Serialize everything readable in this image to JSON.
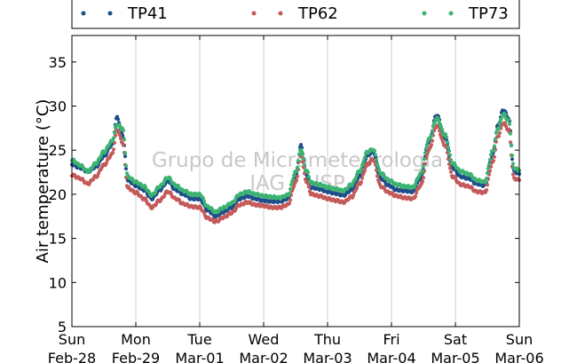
{
  "chart_data": {
    "type": "scatter",
    "ylabel": "Air temperature (°C)",
    "xlabel": "",
    "ylim": [
      5,
      38
    ],
    "yticks": [
      5,
      10,
      15,
      20,
      25,
      30,
      35
    ],
    "xlim": [
      "2016-02-28",
      "2016-03-06"
    ],
    "xticks": [
      {
        "date": "2016-02-28",
        "line1": "Sun",
        "line2": "Feb-28"
      },
      {
        "date": "2016-02-29",
        "line1": "Mon",
        "line2": "Feb-29"
      },
      {
        "date": "2016-03-01",
        "line1": "Tue",
        "line2": "Mar-01"
      },
      {
        "date": "2016-03-02",
        "line1": "Wed",
        "line2": "Mar-02"
      },
      {
        "date": "2016-03-03",
        "line1": "Thu",
        "line2": "Mar-03"
      },
      {
        "date": "2016-03-04",
        "line1": "Fri",
        "line2": "Mar-04"
      },
      {
        "date": "2016-03-05",
        "line1": "Sat",
        "line2": "Mar-05"
      },
      {
        "date": "2016-03-06",
        "line1": "Sun",
        "line2": "Mar-06"
      }
    ],
    "grid": "vertical",
    "legend_position": "top",
    "watermark": [
      "Grupo de Micrometeorologia",
      "IAG / USP"
    ],
    "x": [
      "2016-02-28T00:00",
      "2016-02-28T03:00",
      "2016-02-28T06:00",
      "2016-02-28T09:00",
      "2016-02-28T12:00",
      "2016-02-28T15:00",
      "2016-02-28T17:00",
      "2016-02-28T19:00",
      "2016-02-28T21:00",
      "2016-02-29T00:00",
      "2016-02-29T03:00",
      "2016-02-29T06:00",
      "2016-02-29T09:00",
      "2016-02-29T12:00",
      "2016-02-29T15:00",
      "2016-02-29T18:00",
      "2016-02-29T21:00",
      "2016-03-01T00:00",
      "2016-03-01T03:00",
      "2016-03-01T06:00",
      "2016-03-01T09:00",
      "2016-03-01T12:00",
      "2016-03-01T15:00",
      "2016-03-01T18:00",
      "2016-03-01T21:00",
      "2016-03-02T00:00",
      "2016-03-02T03:00",
      "2016-03-02T06:00",
      "2016-03-02T09:00",
      "2016-03-02T12:00",
      "2016-03-02T14:00",
      "2016-03-02T16:00",
      "2016-03-02T18:00",
      "2016-03-02T21:00",
      "2016-03-03T00:00",
      "2016-03-03T03:00",
      "2016-03-03T06:00",
      "2016-03-03T09:00",
      "2016-03-03T12:00",
      "2016-03-03T15:00",
      "2016-03-03T17:00",
      "2016-03-03T20:00",
      "2016-03-03T23:00",
      "2016-03-04T02:00",
      "2016-03-04T05:00",
      "2016-03-04T08:00",
      "2016-03-04T11:00",
      "2016-03-04T14:00",
      "2016-03-04T17:00",
      "2016-03-04T20:00",
      "2016-03-04T23:00",
      "2016-03-05T02:00",
      "2016-03-05T05:00",
      "2016-03-05T08:00",
      "2016-03-05T11:00",
      "2016-03-05T14:00",
      "2016-03-05T16:00",
      "2016-03-05T18:00",
      "2016-03-05T20:00",
      "2016-03-05T22:00",
      "2016-03-06T00:00"
    ],
    "series": [
      {
        "name": "TP41",
        "color": "#1f4e8c",
        "values": [
          23.4,
          23.0,
          22.6,
          23.1,
          24.3,
          25.6,
          28.7,
          26.8,
          21.6,
          21.0,
          20.5,
          19.5,
          20.5,
          21.5,
          20.5,
          20.0,
          19.5,
          19.5,
          18.2,
          17.5,
          18.0,
          18.5,
          19.5,
          19.8,
          19.5,
          19.3,
          19.2,
          19.2,
          19.5,
          22.0,
          25.5,
          22.3,
          20.8,
          20.6,
          20.3,
          20.1,
          19.9,
          20.5,
          22.0,
          24.4,
          24.9,
          21.8,
          21.0,
          20.5,
          20.4,
          20.3,
          21.8,
          26.0,
          29.0,
          26.5,
          23.0,
          22.0,
          21.8,
          21.2,
          21.0,
          24.5,
          27.8,
          29.6,
          28.6,
          22.6,
          22.3
        ]
      },
      {
        "name": "TP62",
        "color": "#c45a5a",
        "values": [
          22.2,
          21.8,
          21.2,
          22.0,
          23.3,
          24.5,
          27.3,
          25.9,
          20.7,
          20.2,
          19.5,
          18.5,
          19.3,
          20.3,
          19.5,
          18.9,
          18.6,
          18.5,
          17.3,
          16.9,
          17.4,
          17.9,
          18.8,
          19.1,
          18.8,
          18.7,
          18.5,
          18.5,
          18.8,
          21.3,
          24.5,
          21.5,
          20.0,
          19.8,
          19.5,
          19.3,
          19.1,
          19.7,
          21.2,
          23.4,
          24.0,
          20.9,
          20.2,
          19.8,
          19.6,
          19.5,
          21.0,
          25.0,
          27.8,
          25.6,
          22.0,
          21.1,
          20.9,
          20.3,
          20.2,
          23.6,
          26.6,
          28.1,
          27.3,
          21.8,
          21.6
        ]
      },
      {
        "name": "TP73",
        "color": "#3cb371",
        "values": [
          23.9,
          23.3,
          22.6,
          23.5,
          24.8,
          26.0,
          27.9,
          27.5,
          22.0,
          21.4,
          20.9,
          19.9,
          20.9,
          21.9,
          21.0,
          20.4,
          20.0,
          20.0,
          18.6,
          18.0,
          18.5,
          19.0,
          20.0,
          20.3,
          20.0,
          19.8,
          19.7,
          19.6,
          19.9,
          22.5,
          25.1,
          22.7,
          21.3,
          21.1,
          20.8,
          20.6,
          20.4,
          21.1,
          22.6,
          24.8,
          25.1,
          22.4,
          21.6,
          21.1,
          20.9,
          20.8,
          22.3,
          26.2,
          28.6,
          26.8,
          23.5,
          22.6,
          22.3,
          21.6,
          21.4,
          24.9,
          27.5,
          29.1,
          28.3,
          23.0,
          22.7
        ]
      }
    ]
  }
}
